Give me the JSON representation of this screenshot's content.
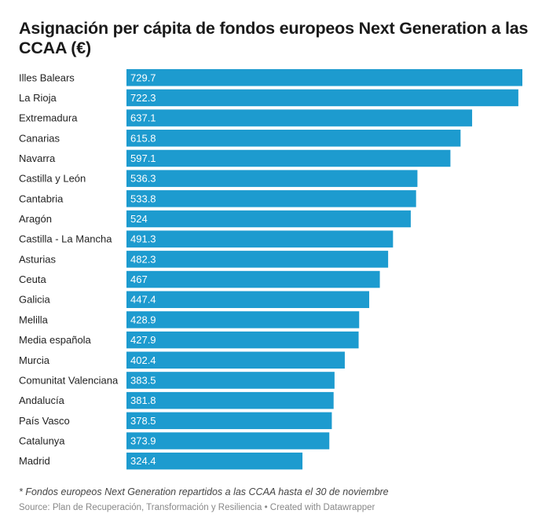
{
  "chart_data": {
    "type": "bar",
    "orientation": "horizontal",
    "title": "Asignación per cápita de fondos europeos Next Generation a las CCAA (€)",
    "categories": [
      "Illes Balears",
      "La Rioja",
      "Extremadura",
      "Canarias",
      "Navarra",
      "Castilla y León",
      "Cantabria",
      "Aragón",
      "Castilla - La Mancha",
      "Asturias",
      "Ceuta",
      "Galicia",
      "Melilla",
      "Media española",
      "Murcia",
      "Comunitat Valenciana",
      "Andalucía",
      "País Vasco",
      "Catalunya",
      "Madrid"
    ],
    "values": [
      729.7,
      722.3,
      637.1,
      615.8,
      597.1,
      536.3,
      533.8,
      524,
      491.3,
      482.3,
      467,
      447.4,
      428.9,
      427.9,
      402.4,
      383.5,
      381.8,
      378.5,
      373.9,
      324.4
    ],
    "value_labels": [
      "729.7",
      "722.3",
      "637.1",
      "615.8",
      "597.1",
      "536.3",
      "533.8",
      "524",
      "491.3",
      "482.3",
      "467",
      "447.4",
      "428.9",
      "427.9",
      "402.4",
      "383.5",
      "381.8",
      "378.5",
      "373.9",
      "324.4"
    ],
    "xlim": [
      0,
      729.7
    ],
    "grid": false,
    "bar_color": "#1d9bcf",
    "note": "* Fondos europeos Next Generation repartidos a las CCAA hasta el 30 de noviembre",
    "source": "Source: Plan de Recuperación, Transformación y Resiliencia • Created with Datawrapper"
  }
}
